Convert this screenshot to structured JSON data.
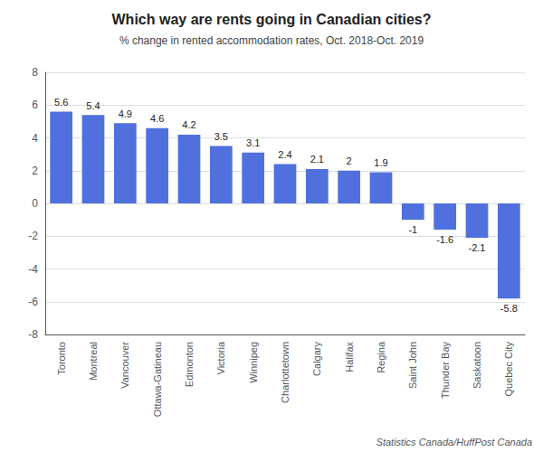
{
  "chart_data": {
    "type": "bar",
    "title": "Which way are rents going in Canadian cities?",
    "subtitle": "% change in rented accommodation rates, Oct. 2018-Oct. 2019",
    "source": "Statistics Canada/HuffPost Canada",
    "categories": [
      "Toronto",
      "Montreal",
      "Vancouver",
      "Ottawa-Gatineau",
      "Edmonton",
      "Victoria",
      "Winnipeg",
      "Charlottetown",
      "Calgary",
      "Halifax",
      "Regina",
      "Saint John",
      "Thunder Bay",
      "Saskatoon",
      "Quebec City"
    ],
    "values": [
      5.6,
      5.4,
      4.9,
      4.6,
      4.2,
      3.5,
      3.1,
      2.4,
      2.1,
      2.0,
      1.9,
      -1.0,
      -1.6,
      -2.1,
      -5.8
    ],
    "ylim": [
      -8,
      8
    ],
    "yticks": [
      -8,
      -6,
      -4,
      -2,
      0,
      2,
      4,
      6,
      8
    ],
    "grid": true,
    "data_labels": true
  }
}
